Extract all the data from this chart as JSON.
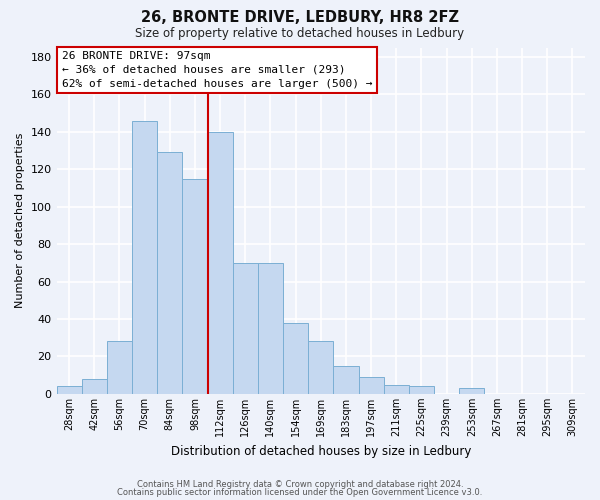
{
  "title": "26, BRONTE DRIVE, LEDBURY, HR8 2FZ",
  "subtitle": "Size of property relative to detached houses in Ledbury",
  "xlabel": "Distribution of detached houses by size in Ledbury",
  "ylabel": "Number of detached properties",
  "bar_color": "#c5d8f0",
  "bar_edge_color": "#7bafd4",
  "background_color": "#eef2fa",
  "grid_color": "white",
  "categories": [
    "28sqm",
    "42sqm",
    "56sqm",
    "70sqm",
    "84sqm",
    "98sqm",
    "112sqm",
    "126sqm",
    "140sqm",
    "154sqm",
    "169sqm",
    "183sqm",
    "197sqm",
    "211sqm",
    "225sqm",
    "239sqm",
    "253sqm",
    "267sqm",
    "281sqm",
    "295sqm",
    "309sqm"
  ],
  "values": [
    4,
    8,
    28,
    146,
    129,
    115,
    140,
    70,
    70,
    38,
    28,
    15,
    9,
    5,
    4,
    0,
    3,
    0,
    0,
    0,
    0
  ],
  "vline_color": "#cc0000",
  "annotation_title": "26 BRONTE DRIVE: 97sqm",
  "annotation_line1": "← 36% of detached houses are smaller (293)",
  "annotation_line2": "62% of semi-detached houses are larger (500) →",
  "footer1": "Contains HM Land Registry data © Crown copyright and database right 2024.",
  "footer2": "Contains public sector information licensed under the Open Government Licence v3.0.",
  "ylim": [
    0,
    185
  ],
  "yticks": [
    0,
    20,
    40,
    60,
    80,
    100,
    120,
    140,
    160,
    180
  ]
}
